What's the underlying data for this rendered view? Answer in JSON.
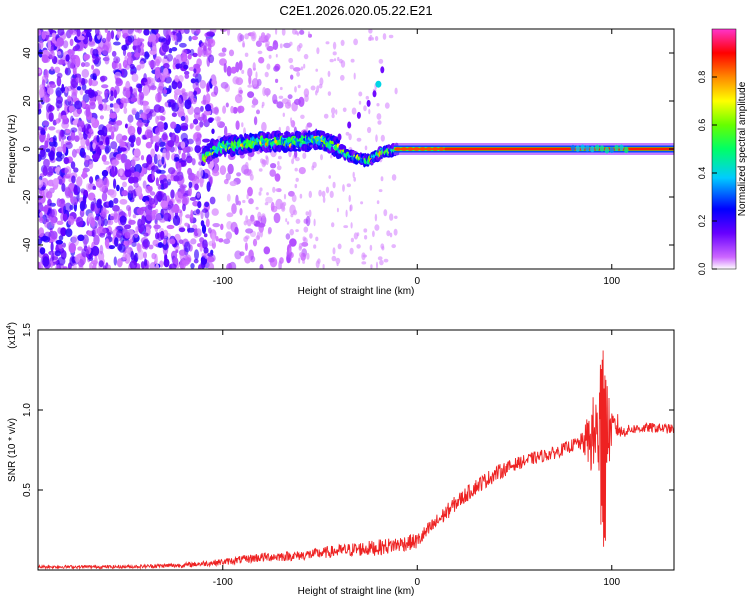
{
  "title": "C2E1.2026.020.05.22.E21",
  "chart_data": [
    {
      "type": "heatmap",
      "title": "C2E1.2026.020.05.22.E21",
      "xlabel": "Height of straight line (km)",
      "ylabel": "Frequency (Hz)",
      "xlim": [
        -195,
        132
      ],
      "ylim": [
        -50,
        50
      ],
      "xticks": [
        -100,
        0,
        100
      ],
      "yticks": [
        -40,
        -20,
        0,
        20,
        40
      ],
      "colorbar": {
        "label": "Normalized spectral amplitude",
        "range": [
          0,
          1
        ],
        "ticks": [
          "0.0",
          "0.2",
          "0.4",
          "0.6",
          "0.8"
        ],
        "tick_values": [
          0,
          0.2,
          0.4,
          0.6,
          0.8
        ],
        "colors": [
          "#ffffff",
          "#cc66ff",
          "#6600ff",
          "#0000ff",
          "#00ccff",
          "#00ff66",
          "#66ff00",
          "#ffff00",
          "#ff8800",
          "#ff0000",
          "#ff33cc"
        ]
      },
      "signal_track": {
        "x": [
          -110,
          -100,
          -80,
          -60,
          -50,
          -40,
          -35,
          -30,
          -25,
          -20,
          -15,
          -10,
          0,
          20,
          60,
          90,
          95,
          100,
          110,
          132
        ],
        "freq": [
          -3,
          1,
          3,
          3,
          4,
          0,
          -3,
          -4,
          -5,
          -2,
          -1,
          0,
          0,
          0,
          0,
          0,
          1,
          0,
          0,
          0
        ]
      },
      "trace": {
        "x": [
          -40,
          -35,
          -30,
          -25,
          -22,
          -20,
          -18
        ],
        "freq": [
          5,
          10,
          14,
          19,
          23,
          27,
          33
        ]
      }
    },
    {
      "type": "line",
      "title": "",
      "xlabel": "Height of straight line (km)",
      "ylabel": "SNR (10 * v/v)",
      "scale_label": "(x10",
      "scale_exp": "4",
      "scale_close": ")",
      "xlim": [
        -195,
        132
      ],
      "ylim": [
        0,
        1.5
      ],
      "xticks": [
        -100,
        0,
        100
      ],
      "yticks": [
        "0.5",
        "1.0",
        "1.5"
      ],
      "ytick_values": [
        0.5,
        1.0,
        1.5
      ],
      "line_color": "#ee2222",
      "x": [
        -195,
        -150,
        -120,
        -100,
        -80,
        -60,
        -40,
        -20,
        -10,
        0,
        10,
        20,
        30,
        40,
        50,
        60,
        70,
        80,
        85,
        90,
        93,
        95,
        96,
        97,
        98,
        100,
        103,
        105,
        110,
        120,
        132
      ],
      "mid": [
        0.02,
        0.02,
        0.03,
        0.05,
        0.08,
        0.09,
        0.12,
        0.14,
        0.16,
        0.18,
        0.3,
        0.42,
        0.52,
        0.6,
        0.66,
        0.7,
        0.73,
        0.78,
        0.8,
        0.82,
        0.86,
        0.82,
        0.76,
        0.84,
        0.87,
        0.88,
        0.9,
        0.86,
        0.88,
        0.89,
        0.88
      ],
      "noise": [
        0.01,
        0.01,
        0.015,
        0.02,
        0.03,
        0.03,
        0.04,
        0.05,
        0.05,
        0.05,
        0.05,
        0.05,
        0.05,
        0.05,
        0.04,
        0.04,
        0.04,
        0.04,
        0.06,
        0.25,
        0.35,
        0.55,
        0.62,
        0.5,
        0.3,
        0.1,
        0.08,
        0.04,
        0.03,
        0.03,
        0.03
      ]
    }
  ]
}
